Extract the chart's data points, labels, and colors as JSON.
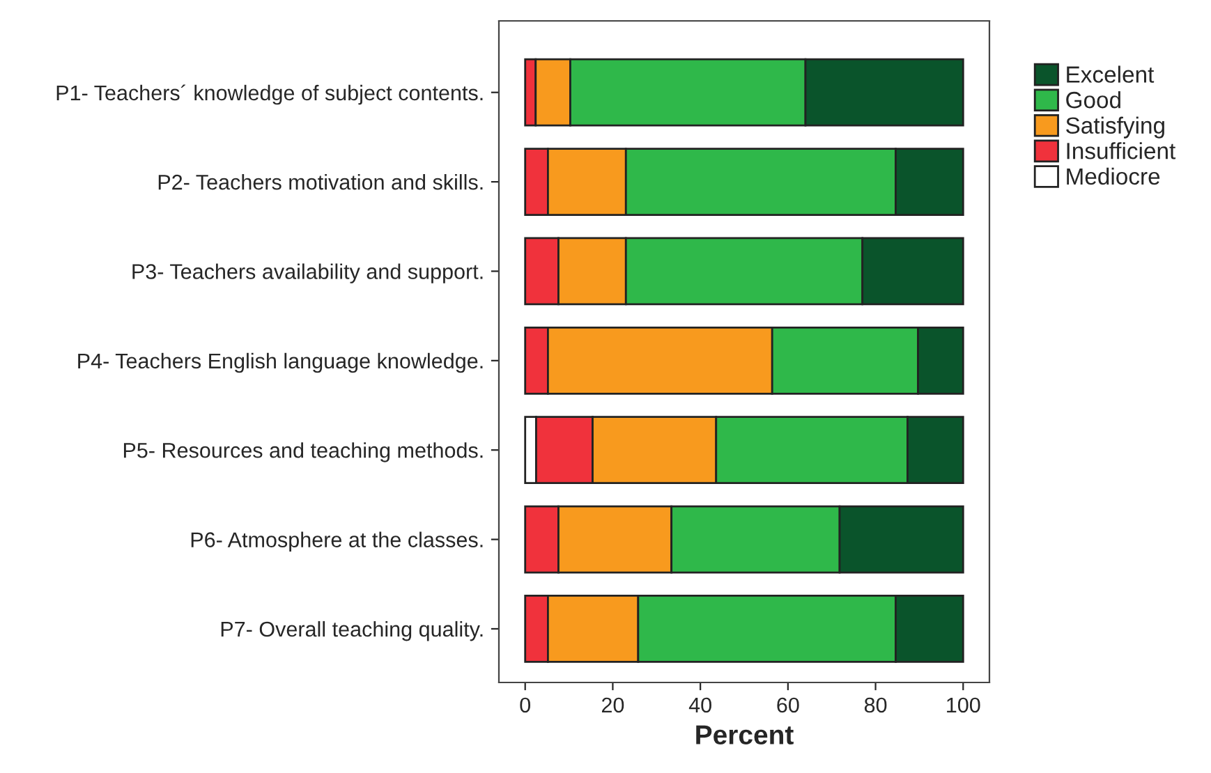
{
  "chart_data": {
    "type": "bar",
    "orientation": "horizontal",
    "stacked": true,
    "categories": [
      "P1- Teachers´ knowledge of subject contents.",
      "P2- Teachers motivation and skills.",
      "P3- Teachers availability and support.",
      "P4- Teachers English language knowledge.",
      "P5- Resources and teaching methods.",
      "P6- Atmosphere at the classes.",
      "P7- Overall teaching quality."
    ],
    "series": [
      {
        "name": "Mediocre",
        "color": "#ffffff",
        "values": [
          null,
          null,
          null,
          null,
          2.5,
          null,
          null
        ]
      },
      {
        "name": "Insufficient",
        "color": "#f0323c",
        "values": [
          2.4,
          5.2,
          7.6,
          5.2,
          12.9,
          7.6,
          5.2
        ]
      },
      {
        "name": "Satisfying",
        "color": "#f89a1e",
        "values": [
          7.9,
          17.8,
          15.4,
          51.2,
          28.2,
          25.8,
          20.6
        ]
      },
      {
        "name": "Good",
        "color": "#2fb84a",
        "values": [
          53.7,
          61.6,
          54.0,
          33.3,
          43.7,
          38.4,
          58.8
        ]
      },
      {
        "name": "Excelent",
        "color": "#0a542b",
        "values": [
          36.0,
          15.4,
          23.0,
          10.3,
          12.7,
          28.2,
          15.4
        ]
      }
    ],
    "xlabel": "Percent",
    "xlim": [
      -6,
      106
    ],
    "xticks": [
      0,
      20,
      40,
      60,
      80,
      100
    ],
    "legend": "right",
    "grid": false
  }
}
